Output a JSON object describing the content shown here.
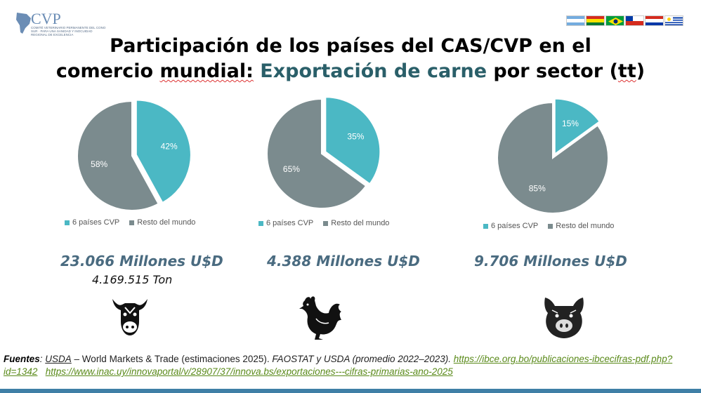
{
  "header": {
    "logo_text": "CVP",
    "logo_subtitle": "COMITÉ VETERINARIO PERMANENTE DEL CONO SUR · PARA UNA SANIDAD Y INOCUIDAD REGIONAL DE EXCELENCIA",
    "title_line1": "Participación de los países del CAS/CVP en el",
    "title_line2_a": "comercio ",
    "title_line2_b": "mundial:",
    "title_line2_accent": " Exportación de carne",
    "title_line2_c": " por sector (",
    "title_line2_d": "tt",
    "title_line2_e": ")",
    "flags": [
      "argentina",
      "bolivia",
      "brasil",
      "chile",
      "paraguay",
      "uruguay"
    ]
  },
  "colors": {
    "cvp": "#4bb8c4",
    "rest": "#7b8b8e",
    "accent": "#2a5f69",
    "value_text": "#4a6b80"
  },
  "chart_data": [
    {
      "type": "pie",
      "sector": "beef",
      "series": [
        {
          "name": "6 países CVP",
          "value": 42,
          "label": "42%"
        },
        {
          "name": "Resto del mundo",
          "value": 58,
          "label": "58%"
        }
      ],
      "legend": [
        "6 países CVP",
        "Resto del mundo"
      ],
      "legend_position": "bottom",
      "value_text": "23.066 Millones U$D",
      "tonnage_text": "4.169.515 Ton"
    },
    {
      "type": "pie",
      "sector": "poultry",
      "series": [
        {
          "name": "6 países CVP",
          "value": 35,
          "label": "35%"
        },
        {
          "name": "Resto del mundo",
          "value": 65,
          "label": "65%"
        }
      ],
      "legend": [
        "6 países CVP",
        "Resto del mundo"
      ],
      "legend_position": "bottom",
      "value_text": "4.388 Millones U$D"
    },
    {
      "type": "pie",
      "sector": "pork",
      "series": [
        {
          "name": "6 países CVP",
          "value": 15,
          "label": "15%"
        },
        {
          "name": "Resto del mundo",
          "value": 85,
          "label": "85%"
        }
      ],
      "legend": [
        "6 países CVP",
        "Resto del mundo"
      ],
      "legend_position": "bottom",
      "value_text": "9.706 Millones U$D"
    }
  ],
  "icons": [
    "cow-icon",
    "rooster-icon",
    "pig-icon"
  ],
  "sources": {
    "label": "Fuentes",
    "usda": "USDA",
    "text1": " – World Markets & Trade (estimaciones 2025). ",
    "text2": "FAOSTAT y USDA (promedio 2022–2023). ",
    "link1": "https://ibce.org.bo/publicaciones-ibcecifras-pdf.php?id=1342",
    "link2": "https://www.inac.uy/innovaportal/v/28907/37/innova.bs/exportaciones---cifras-primarias-ano-2025"
  }
}
